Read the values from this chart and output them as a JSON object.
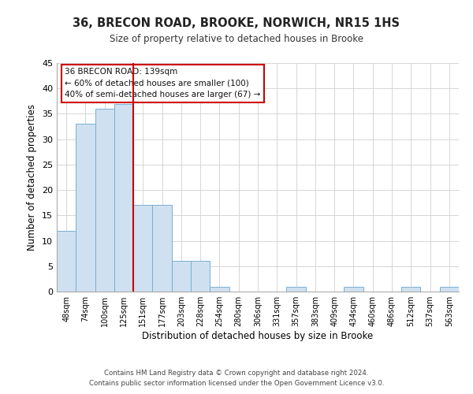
{
  "title": "36, BRECON ROAD, BROOKE, NORWICH, NR15 1HS",
  "subtitle": "Size of property relative to detached houses in Brooke",
  "xlabel": "Distribution of detached houses by size in Brooke",
  "ylabel": "Number of detached properties",
  "categories": [
    "48sqm",
    "74sqm",
    "100sqm",
    "125sqm",
    "151sqm",
    "177sqm",
    "203sqm",
    "228sqm",
    "254sqm",
    "280sqm",
    "306sqm",
    "331sqm",
    "357sqm",
    "383sqm",
    "409sqm",
    "434sqm",
    "460sqm",
    "486sqm",
    "512sqm",
    "537sqm",
    "563sqm"
  ],
  "values": [
    12,
    33,
    36,
    37,
    17,
    17,
    6,
    6,
    1,
    0,
    0,
    0,
    1,
    0,
    0,
    1,
    0,
    0,
    1,
    0,
    1
  ],
  "bar_color": "#cfe0f0",
  "bar_edge_color": "#7aafd4",
  "vline_x": 3.5,
  "vline_color": "#cc0000",
  "ylim": [
    0,
    45
  ],
  "yticks": [
    0,
    5,
    10,
    15,
    20,
    25,
    30,
    35,
    40,
    45
  ],
  "annotation_title": "36 BRECON ROAD: 139sqm",
  "annotation_line1": "← 60% of detached houses are smaller (100)",
  "annotation_line2": "40% of semi-detached houses are larger (67) →",
  "annotation_box_color": "#ffffff",
  "annotation_box_edge": "#cc0000",
  "footnote1": "Contains HM Land Registry data © Crown copyright and database right 2024.",
  "footnote2": "Contains public sector information licensed under the Open Government Licence v3.0.",
  "background_color": "#ffffff",
  "grid_color": "#d0d0d0"
}
